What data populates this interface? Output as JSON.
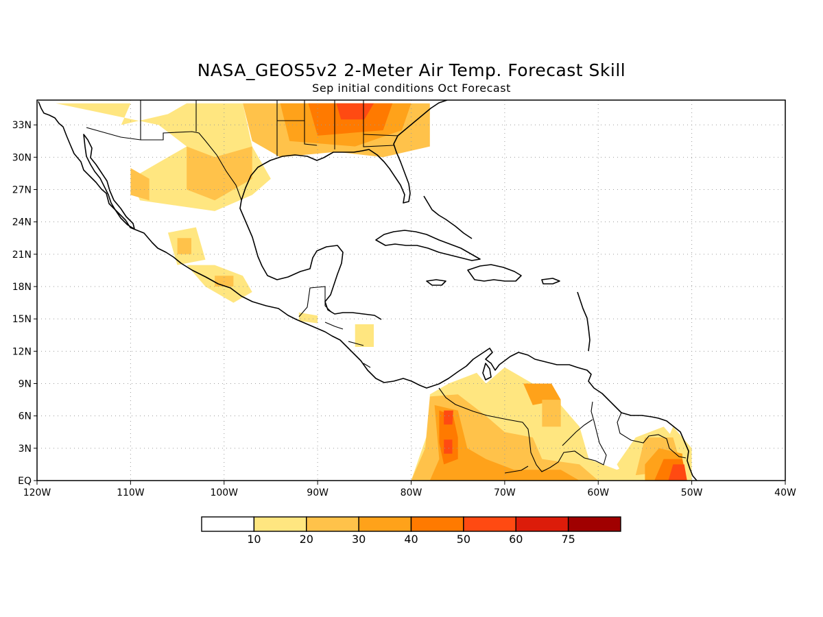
{
  "title": "NASA_GEOS5v2 2-Meter Air Temp. Forecast Skill",
  "subtitle": "Sep initial conditions  Oct Forecast",
  "map": {
    "lon_ticks": [
      {
        "lon": -120,
        "label": "120W"
      },
      {
        "lon": -110,
        "label": "110W"
      },
      {
        "lon": -100,
        "label": "100W"
      },
      {
        "lon": -90,
        "label": "90W"
      },
      {
        "lon": -80,
        "label": "80W"
      },
      {
        "lon": -70,
        "label": "70W"
      },
      {
        "lon": -60,
        "label": "60W"
      },
      {
        "lon": -50,
        "label": "50W"
      },
      {
        "lon": -40,
        "label": "40W"
      }
    ],
    "lat_ticks": [
      {
        "lat": 0,
        "label": "EQ"
      },
      {
        "lat": 3,
        "label": "3N"
      },
      {
        "lat": 6,
        "label": "6N"
      },
      {
        "lat": 9,
        "label": "9N"
      },
      {
        "lat": 12,
        "label": "12N"
      },
      {
        "lat": 15,
        "label": "15N"
      },
      {
        "lat": 18,
        "label": "18N"
      },
      {
        "lat": 21,
        "label": "21N"
      },
      {
        "lat": 24,
        "label": "24N"
      },
      {
        "lat": 27,
        "label": "27N"
      },
      {
        "lat": 30,
        "label": "30N"
      },
      {
        "lat": 33,
        "label": "33N"
      }
    ],
    "lon_range": [
      -120,
      -40
    ],
    "lat_range": [
      0,
      35.3
    ]
  },
  "colorbar": {
    "colors": [
      "#ffffff",
      "#ffe680",
      "#ffc24a",
      "#ffa21a",
      "#ff7a00",
      "#ff4a12",
      "#dc1c0a",
      "#a00000"
    ],
    "labels": [
      "10",
      "20",
      "30",
      "40",
      "50",
      "60",
      "75"
    ]
  },
  "skill_regions": [
    {
      "level": 2,
      "points": [
        [
          -98,
          35
        ],
        [
          -78,
          35
        ],
        [
          -78,
          31
        ],
        [
          -83,
          30
        ],
        [
          -88,
          30.5
        ],
        [
          -94,
          30
        ],
        [
          -97,
          31.5
        ]
      ]
    },
    {
      "level": 3,
      "points": [
        [
          -94,
          35
        ],
        [
          -80,
          35
        ],
        [
          -81,
          32.5
        ],
        [
          -86,
          31
        ],
        [
          -93,
          31.5
        ]
      ]
    },
    {
      "level": 4,
      "points": [
        [
          -91,
          35
        ],
        [
          -82,
          35
        ],
        [
          -83,
          32.5
        ],
        [
          -90,
          32
        ]
      ]
    },
    {
      "level": 5,
      "points": [
        [
          -88,
          35
        ],
        [
          -84,
          35
        ],
        [
          -85,
          33.5
        ],
        [
          -87.5,
          33.5
        ]
      ]
    },
    {
      "level": 1,
      "points": [
        [
          -118,
          35
        ],
        [
          -110,
          35
        ],
        [
          -111,
          33
        ],
        [
          -106,
          34
        ],
        [
          -104,
          35
        ],
        [
          -98,
          35
        ],
        [
          -97,
          31
        ],
        [
          -95,
          28
        ],
        [
          -97,
          26.5
        ],
        [
          -101,
          25
        ],
        [
          -105,
          25.5
        ],
        [
          -109,
          26
        ],
        [
          -110,
          28
        ],
        [
          -106,
          30
        ],
        [
          -104,
          31
        ],
        [
          -107,
          33
        ]
      ]
    },
    {
      "level": 2,
      "points": [
        [
          -104,
          31
        ],
        [
          -101,
          30
        ],
        [
          -97,
          31
        ],
        [
          -97,
          28
        ],
        [
          -101,
          26
        ],
        [
          -104,
          27
        ]
      ]
    },
    {
      "level": 2,
      "points": [
        [
          -110,
          29
        ],
        [
          -108,
          28
        ],
        [
          -108,
          26
        ],
        [
          -110,
          26.5
        ]
      ]
    },
    {
      "level": 1,
      "points": [
        [
          -106,
          23
        ],
        [
          -103,
          23.5
        ],
        [
          -102,
          20.5
        ],
        [
          -105,
          20
        ]
      ]
    },
    {
      "level": 2,
      "points": [
        [
          -105,
          22.5
        ],
        [
          -103.5,
          22.5
        ],
        [
          -103.5,
          21
        ],
        [
          -105,
          21
        ]
      ]
    },
    {
      "level": 1,
      "points": [
        [
          -104,
          20
        ],
        [
          -101,
          20
        ],
        [
          -98,
          19
        ],
        [
          -97,
          17.5
        ],
        [
          -99,
          16.5
        ],
        [
          -102,
          18
        ]
      ]
    },
    {
      "level": 2,
      "points": [
        [
          -101,
          19
        ],
        [
          -99,
          19
        ],
        [
          -99,
          18
        ],
        [
          -101,
          18
        ]
      ]
    },
    {
      "level": 1,
      "points": [
        [
          -92,
          15.6
        ],
        [
          -90,
          15.3
        ],
        [
          -90,
          14.6
        ],
        [
          -92,
          14.8
        ]
      ]
    },
    {
      "level": 1,
      "points": [
        [
          -86,
          14.5
        ],
        [
          -84,
          14.5
        ],
        [
          -84,
          12.4
        ],
        [
          -86,
          12.4
        ]
      ]
    },
    {
      "level": 1,
      "points": [
        [
          -78,
          8
        ],
        [
          -76,
          9
        ],
        [
          -73,
          10
        ],
        [
          -72,
          9
        ],
        [
          -70,
          10.5
        ],
        [
          -67,
          9
        ],
        [
          -64,
          7
        ],
        [
          -62,
          5
        ],
        [
          -61,
          2
        ],
        [
          -58,
          1
        ],
        [
          -53,
          3
        ],
        [
          -52,
          5
        ],
        [
          -50,
          3
        ],
        [
          -50,
          0
        ],
        [
          -80,
          0
        ],
        [
          -79,
          2.5
        ],
        [
          -78,
          5
        ]
      ]
    },
    {
      "level": 2,
      "points": [
        [
          -78,
          7.8
        ],
        [
          -75,
          8
        ],
        [
          -72,
          6
        ],
        [
          -70,
          4.5
        ],
        [
          -67,
          4
        ],
        [
          -66,
          2
        ],
        [
          -62,
          1.5
        ],
        [
          -60,
          0
        ],
        [
          -80,
          0
        ],
        [
          -78.5,
          3
        ]
      ]
    },
    {
      "level": 3,
      "points": [
        [
          -77.5,
          7
        ],
        [
          -75,
          6.5
        ],
        [
          -74,
          3
        ],
        [
          -72,
          2
        ],
        [
          -69,
          1
        ],
        [
          -64,
          1
        ],
        [
          -62,
          0
        ],
        [
          -78,
          0
        ],
        [
          -77,
          2
        ]
      ]
    },
    {
      "level": 4,
      "points": [
        [
          -77,
          6.5
        ],
        [
          -75.5,
          6
        ],
        [
          -75,
          4
        ],
        [
          -75,
          2
        ],
        [
          -76.5,
          1.5
        ],
        [
          -77,
          3.5
        ]
      ]
    },
    {
      "level": 5,
      "points": [
        [
          -76.5,
          6.5
        ],
        [
          -75.5,
          6.5
        ],
        [
          -75.6,
          5.2
        ],
        [
          -76.5,
          5.2
        ]
      ]
    },
    {
      "level": 5,
      "points": [
        [
          -76.5,
          3.8
        ],
        [
          -75.6,
          3.8
        ],
        [
          -75.6,
          2.5
        ],
        [
          -76.5,
          2.5
        ]
      ]
    },
    {
      "level": 1,
      "points": [
        [
          -56,
          4
        ],
        [
          -53,
          5
        ],
        [
          -51,
          3
        ],
        [
          -51,
          0
        ],
        [
          -57,
          0
        ],
        [
          -58,
          1.5
        ]
      ]
    },
    {
      "level": 2,
      "points": [
        [
          -55,
          4
        ],
        [
          -52,
          4
        ],
        [
          -51,
          1
        ],
        [
          -56,
          0.5
        ]
      ]
    },
    {
      "level": 3,
      "points": [
        [
          -53.5,
          3
        ],
        [
          -51,
          2.5
        ],
        [
          -51,
          0
        ],
        [
          -55,
          0
        ],
        [
          -55,
          1.5
        ]
      ]
    },
    {
      "level": 4,
      "points": [
        [
          -53,
          2
        ],
        [
          -51,
          2
        ],
        [
          -50.5,
          0
        ],
        [
          -54,
          0
        ]
      ]
    },
    {
      "level": 5,
      "points": [
        [
          -52,
          1.5
        ],
        [
          -50.8,
          1.5
        ],
        [
          -50.5,
          0
        ],
        [
          -52.5,
          0
        ]
      ]
    },
    {
      "level": 3,
      "points": [
        [
          -68,
          9
        ],
        [
          -65,
          9
        ],
        [
          -64,
          7.5
        ],
        [
          -67,
          7
        ]
      ]
    },
    {
      "level": 2,
      "points": [
        [
          -66,
          7.5
        ],
        [
          -64,
          7.5
        ],
        [
          -64,
          5
        ],
        [
          -66,
          5
        ]
      ]
    }
  ]
}
